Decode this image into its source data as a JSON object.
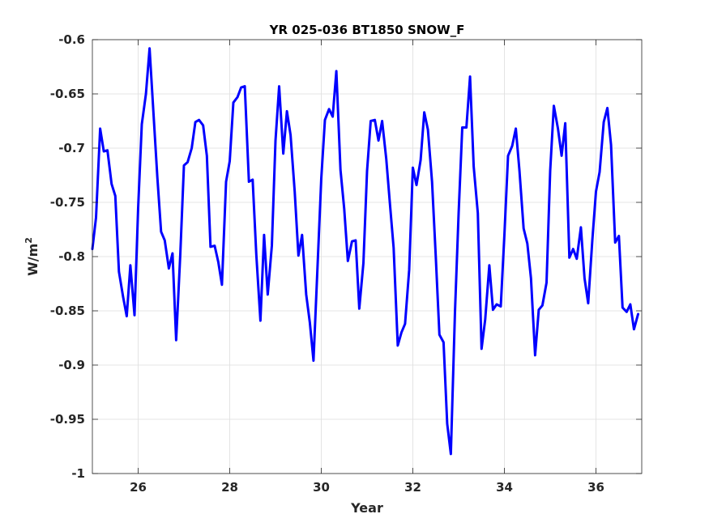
{
  "chart_data": {
    "type": "line",
    "title": "YR 025-036 BT1850 SNOW_F",
    "xlabel": "Year",
    "ylabel": "W/m",
    "ylabel_superscript": "2",
    "xlim": [
      25,
      37
    ],
    "ylim": [
      -1,
      -0.6
    ],
    "xticks": [
      26,
      28,
      30,
      32,
      34,
      36
    ],
    "yticks": [
      -1,
      -0.95,
      -0.9,
      -0.85,
      -0.8,
      -0.75,
      -0.7,
      -0.65,
      -0.6
    ],
    "xtick_labels": [
      "26",
      "28",
      "30",
      "32",
      "34",
      "36"
    ],
    "ytick_labels": [
      "-1",
      "-0.95",
      "-0.9",
      "-0.85",
      "-0.8",
      "-0.75",
      "-0.7",
      "-0.65",
      "-0.6"
    ],
    "grid": true,
    "line_color": "#0000ff",
    "series": [
      {
        "x": [
          25.0,
          25.08,
          25.17,
          25.25,
          25.33,
          25.42,
          25.5,
          25.58,
          25.67,
          25.75,
          25.83,
          25.92,
          26.0,
          26.08,
          26.17,
          26.25,
          26.33,
          26.42,
          26.5,
          26.58,
          26.67,
          26.75,
          26.83,
          26.92,
          27.0,
          27.08,
          27.17,
          27.25,
          27.33,
          27.42,
          27.5,
          27.58,
          27.67,
          27.75,
          27.83,
          27.92,
          28.0,
          28.08,
          28.17,
          28.25,
          28.33,
          28.42,
          28.5,
          28.58,
          28.67,
          28.75,
          28.83,
          28.92,
          29.0,
          29.08,
          29.17,
          29.25,
          29.33,
          29.42,
          29.5,
          29.58,
          29.67,
          29.75,
          29.83,
          29.92,
          30.0,
          30.08,
          30.17,
          30.25,
          30.33,
          30.42,
          30.5,
          30.58,
          30.67,
          30.75,
          30.83,
          30.92,
          31.0,
          31.08,
          31.17,
          31.25,
          31.33,
          31.42,
          31.5,
          31.58,
          31.67,
          31.75,
          31.83,
          31.92,
          32.0,
          32.08,
          32.17,
          32.25,
          32.33,
          32.42,
          32.5,
          32.58,
          32.67,
          32.75,
          32.83,
          32.92,
          33.0,
          33.08,
          33.17,
          33.25,
          33.33,
          33.42,
          33.5,
          33.58,
          33.67,
          33.75,
          33.83,
          33.92,
          34.0,
          34.08,
          34.17,
          34.25,
          34.33,
          34.42,
          34.5,
          34.58,
          34.67,
          34.75,
          34.83,
          34.92,
          35.0,
          35.08,
          35.17,
          35.25,
          35.33,
          35.42,
          35.5,
          35.58,
          35.67,
          35.75,
          35.83,
          35.92,
          36.0,
          36.08,
          36.17,
          36.25,
          36.33,
          36.42,
          36.5,
          36.58,
          36.67,
          36.75,
          36.83,
          36.92
        ],
        "values": [
          -0.793,
          -0.764,
          -0.682,
          -0.703,
          -0.702,
          -0.733,
          -0.744,
          -0.814,
          -0.837,
          -0.855,
          -0.808,
          -0.854,
          -0.755,
          -0.678,
          -0.65,
          -0.608,
          -0.664,
          -0.727,
          -0.777,
          -0.785,
          -0.811,
          -0.797,
          -0.877,
          -0.798,
          -0.716,
          -0.713,
          -0.7,
          -0.676,
          -0.674,
          -0.679,
          -0.707,
          -0.791,
          -0.79,
          -0.805,
          -0.826,
          -0.731,
          -0.712,
          -0.658,
          -0.653,
          -0.644,
          -0.643,
          -0.731,
          -0.729,
          -0.798,
          -0.859,
          -0.78,
          -0.835,
          -0.79,
          -0.693,
          -0.643,
          -0.705,
          -0.666,
          -0.688,
          -0.74,
          -0.799,
          -0.78,
          -0.835,
          -0.861,
          -0.896,
          -0.807,
          -0.728,
          -0.674,
          -0.664,
          -0.671,
          -0.629,
          -0.72,
          -0.756,
          -0.804,
          -0.786,
          -0.785,
          -0.848,
          -0.806,
          -0.721,
          -0.675,
          -0.674,
          -0.693,
          -0.675,
          -0.71,
          -0.752,
          -0.792,
          -0.882,
          -0.87,
          -0.862,
          -0.812,
          -0.718,
          -0.734,
          -0.711,
          -0.667,
          -0.683,
          -0.731,
          -0.8,
          -0.872,
          -0.879,
          -0.954,
          -0.982,
          -0.851,
          -0.76,
          -0.681,
          -0.681,
          -0.634,
          -0.717,
          -0.76,
          -0.885,
          -0.858,
          -0.808,
          -0.849,
          -0.844,
          -0.846,
          -0.78,
          -0.707,
          -0.698,
          -0.682,
          -0.721,
          -0.774,
          -0.788,
          -0.82,
          -0.891,
          -0.849,
          -0.845,
          -0.824,
          -0.721,
          -0.661,
          -0.682,
          -0.707,
          -0.677,
          -0.801,
          -0.793,
          -0.802,
          -0.773,
          -0.82,
          -0.843,
          -0.785,
          -0.74,
          -0.722,
          -0.676,
          -0.663,
          -0.697,
          -0.787,
          -0.781,
          -0.847,
          -0.851,
          -0.844,
          -0.867,
          -0.853
        ]
      }
    ]
  }
}
